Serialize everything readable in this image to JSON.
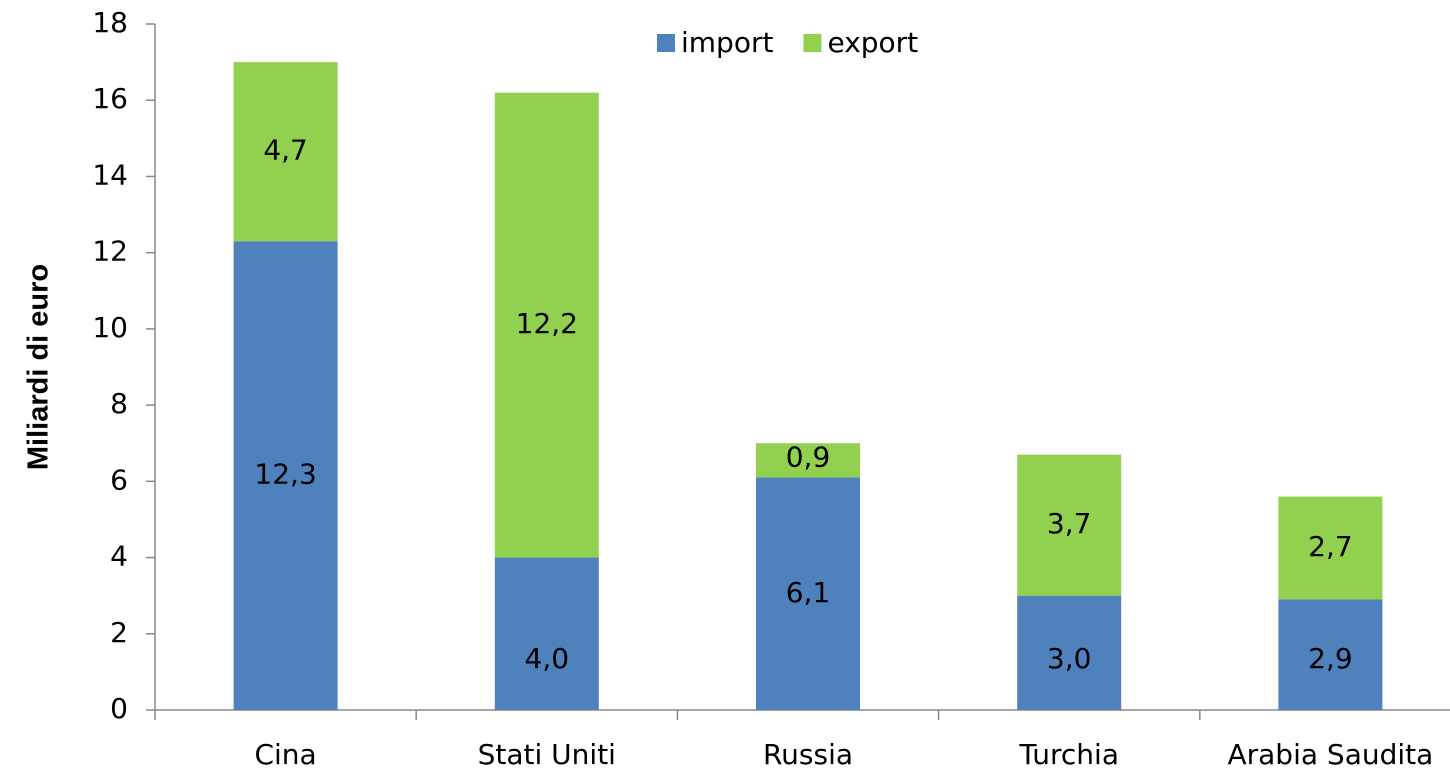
{
  "chart_data": {
    "type": "stacked_bar",
    "y_label": "Miliardi di euro",
    "categories": [
      "Cina",
      "Stati Uniti",
      "Russia",
      "Turchia",
      "Arabia Saudita"
    ],
    "series": [
      {
        "name": "import",
        "color": "#4f81bd",
        "values": [
          12.3,
          4.0,
          6.1,
          3.0,
          2.9
        ],
        "value_labels": [
          "12,3",
          "4,0",
          "6,1",
          "3,0",
          "2,9"
        ]
      },
      {
        "name": "export",
        "color": "#92d050",
        "values": [
          4.7,
          12.2,
          0.9,
          3.7,
          2.7
        ],
        "value_labels": [
          "4,7",
          "12,2",
          "0,9",
          "3,7",
          "2,7"
        ]
      }
    ],
    "ylim": [
      0,
      18
    ],
    "yticks": [
      0,
      2,
      4,
      6,
      8,
      10,
      12,
      14,
      16,
      18
    ],
    "legend": "top",
    "grid": false
  }
}
